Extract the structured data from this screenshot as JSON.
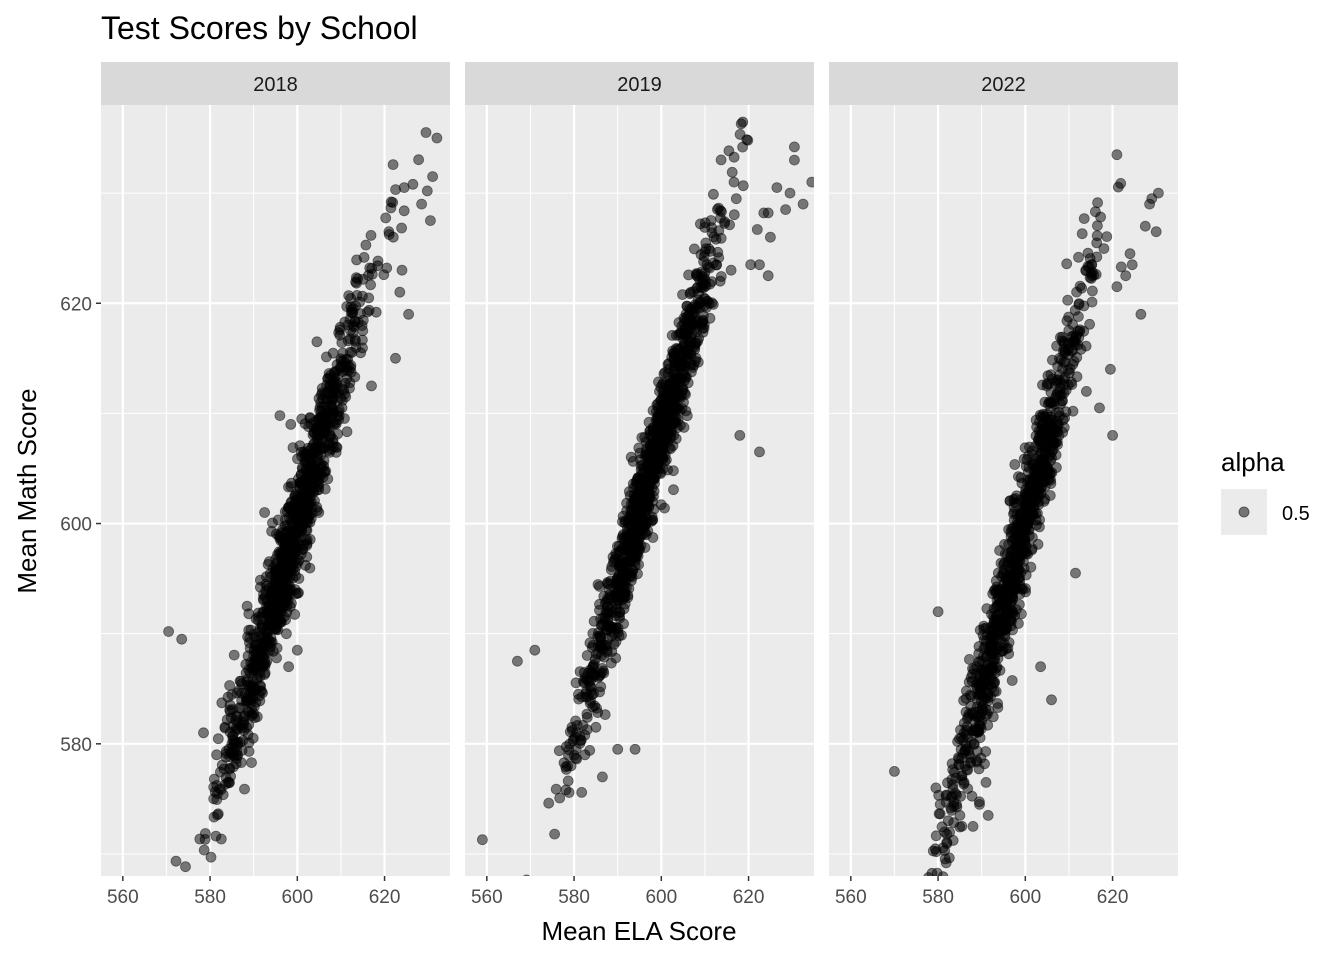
{
  "chart_data": {
    "type": "scatter",
    "title": "Test Scores by School",
    "xlabel": "Mean ELA Score",
    "ylabel": "Mean Math Score",
    "xlim": [
      555,
      635
    ],
    "ylim": [
      568,
      638
    ],
    "x_ticks": [
      560,
      580,
      600,
      620
    ],
    "y_ticks": [
      580,
      600,
      620
    ],
    "grid": true,
    "point_color": "#000000",
    "point_alpha": 0.5,
    "legend": {
      "title": "alpha",
      "label": "0.5",
      "placement": "right"
    },
    "facets": [
      {
        "label": "2018",
        "trend": {
          "slope": 1.35,
          "intercept": -210,
          "x_center": 599,
          "x_sd": 8.5,
          "noise_sd": 2.6,
          "n": 1050
        },
        "points": [
          [
            570.5,
            590.2
          ],
          [
            573.5,
            589.5
          ],
          [
            578.5,
            581.0
          ],
          [
            581.5,
            579.0
          ],
          [
            584.5,
            577.8
          ],
          [
            586.0,
            578.2
          ],
          [
            589.5,
            578.3
          ],
          [
            629.5,
            635.5
          ],
          [
            632.0,
            635.0
          ],
          [
            624.5,
            630.5
          ],
          [
            626.5,
            630.8
          ],
          [
            631.0,
            631.5
          ],
          [
            628.5,
            629.0
          ],
          [
            630.5,
            627.5
          ],
          [
            629.8,
            630.2
          ],
          [
            621.0,
            626.5
          ],
          [
            622.0,
            626.0
          ],
          [
            624.0,
            623.0
          ],
          [
            620.5,
            623.2
          ],
          [
            623.5,
            621.0
          ],
          [
            625.5,
            619.0
          ],
          [
            622.5,
            615.0
          ],
          [
            596.0,
            609.8
          ],
          [
            598.5,
            609.0
          ],
          [
            604.5,
            616.5
          ],
          [
            601.0,
            609.5
          ],
          [
            592.5,
            601.0
          ],
          [
            600.0,
            588.5
          ],
          [
            598.0,
            587.0
          ],
          [
            597.5,
            590.0
          ],
          [
            593.0,
            587.5
          ],
          [
            588.5,
            592.5
          ],
          [
            617.0,
            612.5
          ]
        ]
      },
      {
        "label": "2019",
        "trend": {
          "slope": 1.38,
          "intercept": -220,
          "x_center": 597,
          "x_sd": 8.5,
          "noise_sd": 2.4,
          "n": 1100
        },
        "points": [
          [
            559.0,
            571.3
          ],
          [
            567.0,
            587.5
          ],
          [
            571.0,
            588.5
          ],
          [
            578.5,
            578.0
          ],
          [
            580.5,
            579.5
          ],
          [
            582.5,
            579.0
          ],
          [
            586.5,
            577.0
          ],
          [
            590.0,
            579.5
          ],
          [
            594.0,
            579.5
          ],
          [
            579.5,
            581.5
          ],
          [
            585.0,
            581.5
          ],
          [
            581.0,
            584.5
          ],
          [
            630.5,
            634.2
          ],
          [
            630.5,
            633.0
          ],
          [
            634.5,
            631.0
          ],
          [
            632.5,
            629.0
          ],
          [
            629.5,
            630.0
          ],
          [
            626.5,
            630.5
          ],
          [
            628.5,
            628.5
          ],
          [
            624.5,
            628.2
          ],
          [
            623.5,
            628.2
          ],
          [
            622.0,
            626.7
          ],
          [
            625.0,
            626.0
          ],
          [
            620.5,
            623.5
          ],
          [
            622.5,
            623.5
          ],
          [
            624.5,
            622.5
          ],
          [
            609.5,
            621.8
          ],
          [
            613.5,
            622.0
          ],
          [
            616.0,
            623.0
          ],
          [
            611.0,
            620.0
          ],
          [
            622.5,
            606.5
          ],
          [
            618.0,
            608.0
          ]
        ]
      },
      {
        "label": "2022",
        "trend": {
          "slope": 1.52,
          "intercept": -312,
          "x_center": 598,
          "x_sd": 8.3,
          "noise_sd": 2.8,
          "n": 1000
        },
        "points": [
          [
            570.0,
            577.5
          ],
          [
            580.0,
            592.0
          ],
          [
            580.5,
            574.5
          ],
          [
            581.5,
            572.0
          ],
          [
            582.0,
            571.8
          ],
          [
            585.0,
            573.5
          ],
          [
            588.0,
            572.5
          ],
          [
            591.5,
            573.5
          ],
          [
            589.5,
            574.5
          ],
          [
            584.0,
            575.5
          ],
          [
            586.0,
            576.5
          ],
          [
            591.0,
            576.5
          ],
          [
            579.5,
            576.0
          ],
          [
            630.5,
            630.0
          ],
          [
            629.0,
            629.5
          ],
          [
            628.5,
            629.0
          ],
          [
            627.5,
            627.0
          ],
          [
            630.0,
            626.5
          ],
          [
            624.0,
            624.5
          ],
          [
            624.5,
            623.5
          ],
          [
            623.0,
            622.5
          ],
          [
            622.0,
            623.3
          ],
          [
            621.0,
            621.5
          ],
          [
            626.5,
            619.0
          ],
          [
            619.5,
            614.0
          ],
          [
            620.0,
            608.0
          ],
          [
            617.0,
            610.5
          ],
          [
            614.0,
            612.0
          ],
          [
            611.5,
            595.5
          ],
          [
            606.0,
            584.0
          ],
          [
            603.5,
            587.0
          ],
          [
            595.0,
            590.5
          ]
        ]
      }
    ]
  }
}
